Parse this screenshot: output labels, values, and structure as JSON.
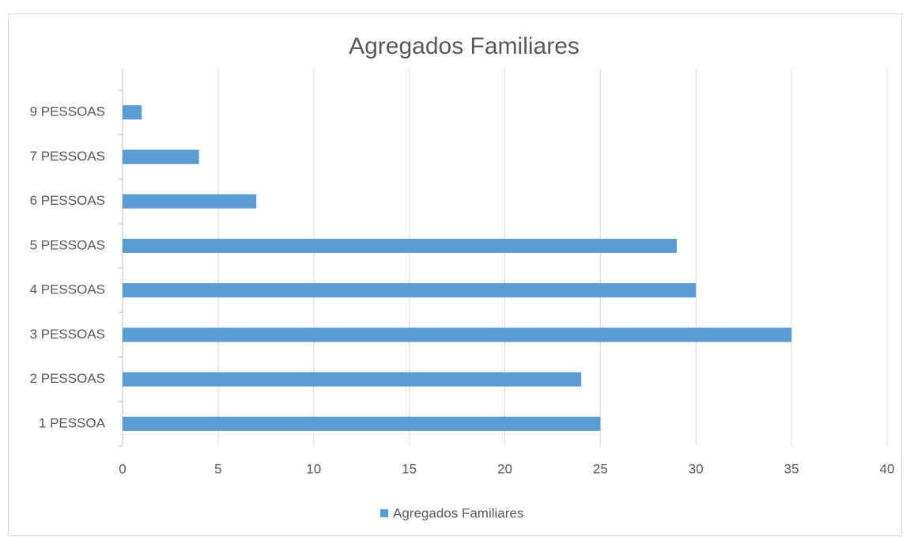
{
  "chart_data": {
    "type": "bar",
    "orientation": "horizontal",
    "title": "Agregados Familiares",
    "categories": [
      "1 PESSOA",
      "2 PESSOAS",
      "3 PESSOAS",
      "4 PESSOAS",
      "5 PESSOAS",
      "6 PESSOAS",
      "7 PESSOAS",
      "9 PESSOAS"
    ],
    "series": [
      {
        "name": "Agregados Familiares",
        "color": "#5b9bd5",
        "values": [
          25,
          24,
          35,
          30,
          29,
          7,
          4,
          1
        ]
      }
    ],
    "xlim": [
      0,
      40
    ],
    "xticks": [
      0,
      5,
      10,
      15,
      20,
      25,
      30,
      35,
      40
    ],
    "grid": true,
    "legend": "bottom"
  }
}
